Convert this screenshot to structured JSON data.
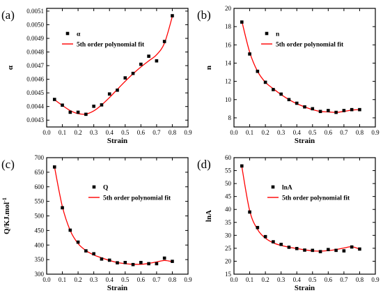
{
  "legend_fit_label": "5th order polynomial fit",
  "colors": {
    "fit": "#ff0000",
    "points": "#000000",
    "axes": "#000000"
  },
  "chart_data": [
    {
      "type": "scatter",
      "panel_label": "(a)",
      "xlabel": "Strain",
      "ylabel": "α",
      "xlim": [
        0,
        0.9
      ],
      "ylim": [
        0.00425,
        0.00512
      ],
      "xticks": [
        0.0,
        0.1,
        0.2,
        0.3,
        0.4,
        0.5,
        0.6,
        0.7,
        0.8,
        0.9
      ],
      "xtick_labels": [
        "0.0",
        "0.1",
        "0.2",
        "0.3",
        "0.4",
        "0.5",
        "0.6",
        "0.7",
        "0.8",
        "0.9"
      ],
      "yticks": [
        0.0043,
        0.0044,
        0.0045,
        0.0046,
        0.0047,
        0.0048,
        0.0049,
        0.005,
        0.0051
      ],
      "ytick_labels": [
        "0.0043",
        "0.0044",
        "0.0045",
        "0.0046",
        "0.0047",
        "0.0048",
        "0.0049",
        "0.0050",
        "0.0051"
      ],
      "legend": {
        "position": "top-left",
        "entries": [
          "α",
          "5th order polynomial fit"
        ]
      },
      "series": [
        {
          "name": "α",
          "x": [
            0.05,
            0.1,
            0.15,
            0.2,
            0.25,
            0.3,
            0.35,
            0.4,
            0.45,
            0.5,
            0.55,
            0.6,
            0.65,
            0.7,
            0.75,
            0.8
          ],
          "y": [
            0.004452,
            0.00441,
            0.004358,
            0.004358,
            0.004343,
            0.004402,
            0.004412,
            0.004492,
            0.00452,
            0.00461,
            0.004643,
            0.00471,
            0.004769,
            0.004735,
            0.004877,
            0.005066
          ]
        },
        {
          "name": "5th order polynomial fit",
          "x": [
            0.05,
            0.1,
            0.15,
            0.2,
            0.25,
            0.3,
            0.35,
            0.4,
            0.45,
            0.5,
            0.55,
            0.6,
            0.65,
            0.7,
            0.75,
            0.8
          ],
          "y": [
            0.00445,
            0.004408,
            0.00437,
            0.004348,
            0.004345,
            0.004368,
            0.004412,
            0.004466,
            0.004526,
            0.004585,
            0.00464,
            0.00469,
            0.004735,
            0.00478,
            0.004865,
            0.00506
          ]
        }
      ]
    },
    {
      "type": "scatter",
      "panel_label": "(b)",
      "xlabel": "Strain",
      "ylabel": "n",
      "xlim": [
        0,
        0.9
      ],
      "ylim": [
        7,
        20
      ],
      "xticks": [
        0.0,
        0.1,
        0.2,
        0.3,
        0.4,
        0.5,
        0.6,
        0.7,
        0.8,
        0.9
      ],
      "xtick_labels": [
        "0.0",
        "0.1",
        "0.2",
        "0.3",
        "0.4",
        "0.5",
        "0.6",
        "0.7",
        "0.8",
        "0.9"
      ],
      "yticks": [
        8,
        10,
        12,
        14,
        16,
        18,
        20
      ],
      "ytick_labels": [
        "8",
        "10",
        "12",
        "14",
        "16",
        "18",
        "20"
      ],
      "legend": {
        "position": "top-right",
        "entries": [
          "n",
          "5th order polynomial fit"
        ]
      },
      "series": [
        {
          "name": "n",
          "x": [
            0.05,
            0.1,
            0.15,
            0.2,
            0.25,
            0.3,
            0.35,
            0.4,
            0.45,
            0.5,
            0.55,
            0.6,
            0.65,
            0.7,
            0.75,
            0.8
          ],
          "y": [
            18.5,
            15.0,
            13.1,
            11.9,
            11.1,
            10.6,
            10.0,
            9.6,
            9.2,
            9.0,
            8.7,
            8.8,
            8.6,
            8.8,
            8.9,
            8.9
          ],
          "marker_size_factor": [
            1.0,
            1.0,
            1.0,
            1.0,
            1.0,
            1.0,
            1.0,
            1.0,
            1.0,
            1.0,
            1.0,
            1.0,
            1.0,
            1.0,
            1.0,
            1.0
          ]
        },
        {
          "name": "5th order polynomial fit",
          "x": [
            0.05,
            0.1,
            0.15,
            0.2,
            0.25,
            0.3,
            0.35,
            0.4,
            0.45,
            0.5,
            0.55,
            0.6,
            0.65,
            0.7,
            0.75,
            0.8
          ],
          "y": [
            18.6,
            15.2,
            13.1,
            11.9,
            11.2,
            10.55,
            10.0,
            9.55,
            9.2,
            8.9,
            8.7,
            8.65,
            8.6,
            8.7,
            8.85,
            8.9
          ]
        }
      ]
    },
    {
      "type": "scatter",
      "panel_label": "(c)",
      "xlabel": "Strain",
      "ylabel": "Q/KJ.mol-1",
      "ylabel_main": "Q/KJ.mol",
      "ylabel_superscript": "-1",
      "xlim": [
        0,
        0.9
      ],
      "ylim": [
        300,
        700
      ],
      "xticks": [
        0.0,
        0.1,
        0.2,
        0.3,
        0.4,
        0.5,
        0.6,
        0.7,
        0.8,
        0.9
      ],
      "xtick_labels": [
        "0.0",
        "0.1",
        "0.2",
        "0.3",
        "0.4",
        "0.5",
        "0.6",
        "0.7",
        "0.8",
        "0.9"
      ],
      "yticks": [
        300,
        350,
        400,
        450,
        500,
        550,
        600,
        650,
        700
      ],
      "ytick_labels": [
        "300",
        "350",
        "400",
        "450",
        "500",
        "550",
        "600",
        "650",
        "700"
      ],
      "legend": {
        "position": "right",
        "entries": [
          "Q",
          "5th order polynomial fit"
        ]
      },
      "series": [
        {
          "name": "Q",
          "x": [
            0.05,
            0.1,
            0.15,
            0.2,
            0.25,
            0.3,
            0.35,
            0.4,
            0.45,
            0.5,
            0.55,
            0.6,
            0.65,
            0.7,
            0.75,
            0.8
          ],
          "y": [
            668,
            528,
            451,
            410,
            380,
            370,
            352,
            348,
            339,
            340,
            333,
            340,
            336,
            336,
            355,
            344
          ]
        },
        {
          "name": "5th order polynomial fit",
          "x": [
            0.05,
            0.1,
            0.15,
            0.2,
            0.25,
            0.3,
            0.35,
            0.4,
            0.45,
            0.5,
            0.55,
            0.6,
            0.65,
            0.7,
            0.75,
            0.8
          ],
          "y": [
            668,
            532,
            450,
            405,
            381,
            366,
            356,
            347,
            340,
            336,
            334,
            334,
            337,
            342,
            347,
            343
          ]
        }
      ]
    },
    {
      "type": "scatter",
      "panel_label": "(d)",
      "xlabel": "Strain",
      "ylabel": "lnA",
      "xlim": [
        0,
        0.9
      ],
      "ylim": [
        15,
        60
      ],
      "xticks": [
        0.0,
        0.1,
        0.2,
        0.3,
        0.4,
        0.5,
        0.6,
        0.7,
        0.8,
        0.9
      ],
      "xtick_labels": [
        "0.0",
        "0.1",
        "0.2",
        "0.3",
        "0.4",
        "0.5",
        "0.6",
        "0.7",
        "0.8",
        "0.9"
      ],
      "yticks": [
        15,
        20,
        25,
        30,
        35,
        40,
        45,
        50,
        55,
        60
      ],
      "ytick_labels": [
        "15",
        "20",
        "25",
        "30",
        "35",
        "40",
        "45",
        "50",
        "55",
        "60"
      ],
      "legend": {
        "position": "right",
        "entries": [
          "lnA",
          "5th order polynomial fit"
        ]
      },
      "series": [
        {
          "name": "lnA",
          "x": [
            0.05,
            0.1,
            0.15,
            0.2,
            0.25,
            0.3,
            0.35,
            0.4,
            0.45,
            0.5,
            0.55,
            0.6,
            0.65,
            0.7,
            0.75,
            0.8
          ],
          "y": [
            56.8,
            39.0,
            33.0,
            29.5,
            27.5,
            26.5,
            25.4,
            24.9,
            24.3,
            24.2,
            23.7,
            24.5,
            24.2,
            24.0,
            25.5,
            24.7
          ]
        },
        {
          "name": "5th order polynomial fit",
          "x": [
            0.05,
            0.1,
            0.15,
            0.2,
            0.25,
            0.3,
            0.35,
            0.4,
            0.45,
            0.5,
            0.55,
            0.6,
            0.65,
            0.7,
            0.75,
            0.8
          ],
          "y": [
            56.5,
            39.5,
            32.3,
            28.9,
            27.1,
            26.1,
            25.4,
            24.9,
            24.4,
            24.0,
            23.9,
            24.1,
            24.5,
            25.1,
            25.6,
            24.7
          ]
        }
      ]
    }
  ]
}
